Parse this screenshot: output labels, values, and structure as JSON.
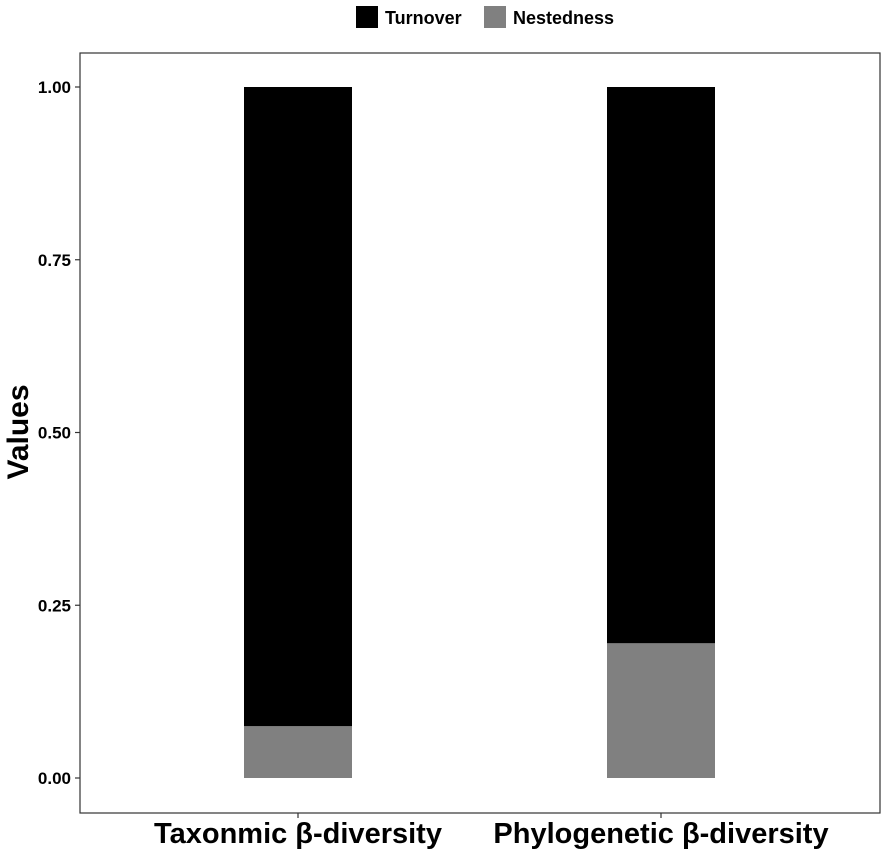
{
  "chart_data": {
    "type": "bar",
    "stacked": true,
    "categories": [
      "Taxonmic β-diversity",
      "Phylogenetic β-diversity"
    ],
    "series": [
      {
        "name": "Turnover",
        "values": [
          0.925,
          0.805
        ],
        "color": "#000000"
      },
      {
        "name": "Nestedness",
        "values": [
          0.075,
          0.195
        ],
        "color": "#808080"
      }
    ],
    "title": "",
    "xlabel": "",
    "ylabel": "Values",
    "ylim": [
      0,
      1
    ],
    "yticks": [
      0,
      0.25,
      0.5,
      0.75,
      1
    ],
    "ytick_labels": [
      "0.00",
      "0.25",
      "0.50",
      "0.75",
      "1.00"
    ],
    "grid": false,
    "legend_position": "top"
  }
}
